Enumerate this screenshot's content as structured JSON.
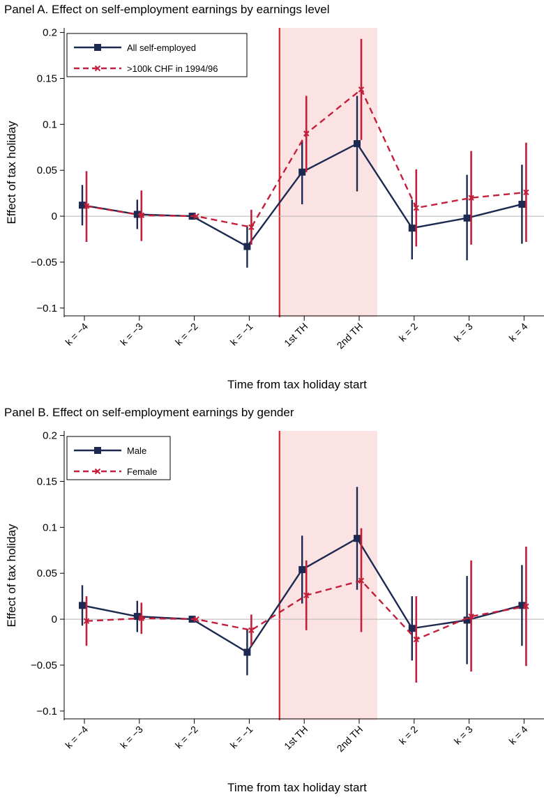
{
  "chart_data": [
    {
      "type": "line",
      "title": "Panel A. Effect on self-employment earnings by earnings level",
      "xlabel": "Time from tax holiday start",
      "ylabel": "Effect of tax holiday",
      "categories": [
        "k = −4",
        "k = −3",
        "k = −2",
        "k = −1",
        "1st TH",
        "2nd TH",
        "k = 2",
        "k = 3",
        "k = 4"
      ],
      "yticks": [
        -0.1,
        -0.05,
        0,
        0.05,
        0.1,
        0.15,
        0.2
      ],
      "ytick_labels": [
        "−0.1",
        "−0.05",
        "0",
        "0.05",
        "0.1",
        "0.15",
        "0.2"
      ],
      "ylim": [
        -0.11,
        0.205
      ],
      "shaded_categories": [
        "1st TH",
        "2nd TH"
      ],
      "legend_position": "top-left",
      "colors": {
        "navy": "#1c2951",
        "red": "#c21f3a",
        "vline": "#d7222a",
        "shade": "#fbe3e3",
        "zero": "#b4b4b4"
      },
      "series": [
        {
          "name": "All self-employed",
          "style": "solid-square",
          "values": [
            0.012,
            0.002,
            0.0,
            -0.033,
            0.048,
            0.079,
            -0.013,
            -0.002,
            0.013
          ],
          "ci_low": [
            -0.01,
            -0.014,
            null,
            -0.056,
            0.013,
            0.027,
            -0.047,
            -0.048,
            -0.03
          ],
          "ci_high": [
            0.034,
            0.018,
            null,
            -0.01,
            0.083,
            0.131,
            0.018,
            0.045,
            0.056
          ]
        },
        {
          "name": ">100k CHF in 1994/96",
          "style": "dashed-x",
          "values": [
            0.011,
            0.001,
            0.0,
            -0.012,
            0.09,
            0.138,
            0.009,
            0.02,
            0.026
          ],
          "ci_low": [
            -0.028,
            -0.027,
            null,
            -0.031,
            0.048,
            0.083,
            -0.033,
            -0.031,
            -0.028
          ],
          "ci_high": [
            0.049,
            0.028,
            null,
            0.007,
            0.131,
            0.193,
            0.051,
            0.071,
            0.08
          ]
        }
      ]
    },
    {
      "type": "line",
      "title": "Panel B. Effect on self-employment earnings by gender",
      "xlabel": "Time from tax holiday start",
      "ylabel": "Effect of tax holiday",
      "categories": [
        "k = −4",
        "k = −3",
        "k = −2",
        "k = −1",
        "1st TH",
        "2nd TH",
        "k = 2",
        "k = 3",
        "k = 4"
      ],
      "yticks": [
        -0.1,
        -0.05,
        0,
        0.05,
        0.1,
        0.15,
        0.2
      ],
      "ytick_labels": [
        "−0.1",
        "−0.05",
        "0",
        "0.05",
        "0.1",
        "0.15",
        "0.2"
      ],
      "ylim": [
        -0.11,
        0.205
      ],
      "shaded_categories": [
        "1st TH",
        "2nd TH"
      ],
      "legend_position": "top-left",
      "colors": {
        "navy": "#1c2951",
        "red": "#c21f3a",
        "vline": "#d7222a",
        "shade": "#fbe3e3",
        "zero": "#b4b4b4"
      },
      "series": [
        {
          "name": "Male",
          "style": "solid-square",
          "values": [
            0.015,
            0.003,
            0.0,
            -0.036,
            0.054,
            0.088,
            -0.01,
            -0.001,
            0.015
          ],
          "ci_low": [
            -0.007,
            -0.014,
            null,
            -0.061,
            0.017,
            0.032,
            -0.045,
            -0.049,
            -0.029
          ],
          "ci_high": [
            0.037,
            0.02,
            null,
            -0.011,
            0.091,
            0.144,
            0.025,
            0.047,
            0.059
          ]
        },
        {
          "name": "Female",
          "style": "dashed-x",
          "values": [
            -0.002,
            0.001,
            0.0,
            -0.012,
            0.026,
            0.042,
            -0.022,
            0.003,
            0.014
          ],
          "ci_low": [
            -0.029,
            -0.016,
            null,
            -0.029,
            -0.012,
            -0.014,
            -0.069,
            -0.057,
            -0.051
          ],
          "ci_high": [
            0.025,
            0.018,
            null,
            0.005,
            0.064,
            0.099,
            0.025,
            0.064,
            0.079
          ]
        }
      ]
    }
  ]
}
